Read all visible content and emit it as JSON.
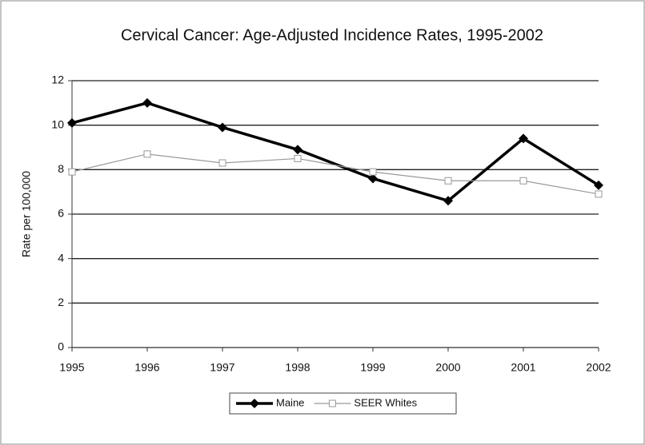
{
  "chart_data": {
    "type": "line",
    "title": "Cervical Cancer: Age-Adjusted Incidence Rates, 1995-2002",
    "y_label": "Rate per 100,000",
    "x": [
      1995,
      1996,
      1997,
      1998,
      1999,
      2000,
      2001,
      2002
    ],
    "xlim": [
      1995,
      2002
    ],
    "xticks": [
      1995,
      1996,
      1997,
      1998,
      1999,
      2000,
      2001,
      2002
    ],
    "ylim": [
      0,
      12
    ],
    "yticks": [
      0,
      2,
      4,
      6,
      8,
      10,
      12
    ],
    "grid": true,
    "legend": "bottom",
    "series": [
      {
        "name": "Maine",
        "color": "#000000",
        "values": [
          10.1,
          11.0,
          9.9,
          8.9,
          7.6,
          6.6,
          9.4,
          7.3
        ]
      },
      {
        "name": "SEER Whites",
        "color": "#999999",
        "values": [
          7.9,
          8.7,
          8.3,
          8.5,
          7.9,
          7.5,
          7.5,
          6.9
        ]
      }
    ]
  }
}
